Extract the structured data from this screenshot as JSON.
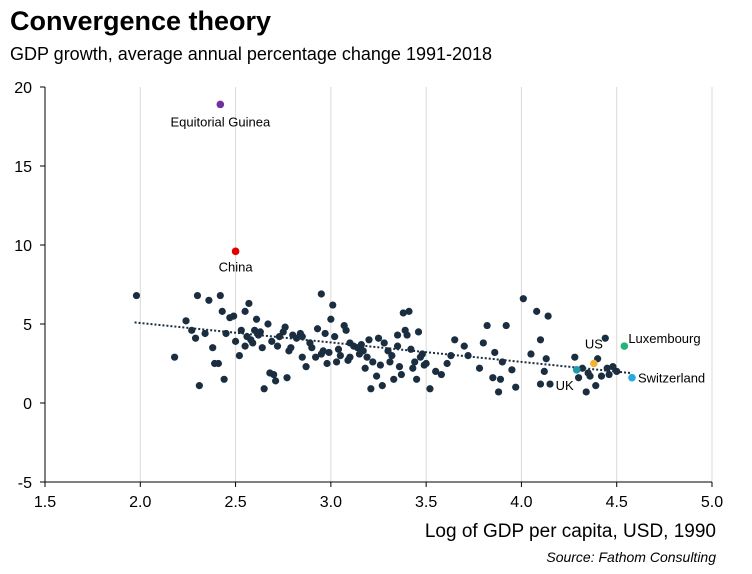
{
  "chart_data": {
    "type": "scatter",
    "title": "Convergence theory",
    "subtitle": "GDP growth, average annual percentage change 1991-2018",
    "xlabel": "Log of GDP per capita, USD, 1990",
    "ylabel": "",
    "source": "Source: Fathom Consulting",
    "xlim": [
      1.5,
      5.0
    ],
    "ylim": [
      -5,
      20
    ],
    "xticks": [
      "1.5",
      "2.0",
      "2.5",
      "3.0",
      "3.5",
      "4.0",
      "4.5",
      "5.0"
    ],
    "yticks": [
      "-5",
      "0",
      "5",
      "10",
      "15",
      "20"
    ],
    "grid": "vertical",
    "trendline": {
      "x": [
        1.97,
        4.57
      ],
      "y": [
        5.1,
        1.9
      ],
      "style": "dotted"
    },
    "colors": {
      "default": "#1a2e40",
      "equatorial_guinea": "#7030a0",
      "china": "#e00000",
      "uk": "#1f9aa8",
      "us": "#f2b233",
      "luxembourg": "#22b573",
      "switzerland": "#2aa8e0"
    },
    "highlighted": [
      {
        "label": "Equitorial Guinea",
        "x": 2.42,
        "y": 18.9,
        "color": "#7030a0"
      },
      {
        "label": "China",
        "x": 2.5,
        "y": 9.6,
        "color": "#e00000"
      },
      {
        "label": "UK",
        "x": 4.29,
        "y": 2.1,
        "color": "#1f9aa8"
      },
      {
        "label": "US",
        "x": 4.38,
        "y": 2.5,
        "color": "#f2b233"
      },
      {
        "label": "Luxembourg",
        "x": 4.54,
        "y": 3.6,
        "color": "#22b573"
      },
      {
        "label": "Switzerland",
        "x": 4.58,
        "y": 1.6,
        "color": "#2aa8e0"
      }
    ],
    "points": [
      [
        1.98,
        6.8
      ],
      [
        2.18,
        2.9
      ],
      [
        2.24,
        5.2
      ],
      [
        2.27,
        4.6
      ],
      [
        2.29,
        4.1
      ],
      [
        2.3,
        6.8
      ],
      [
        2.31,
        1.1
      ],
      [
        2.34,
        4.4
      ],
      [
        2.36,
        6.5
      ],
      [
        2.38,
        3.5
      ],
      [
        2.39,
        2.5
      ],
      [
        2.41,
        2.5
      ],
      [
        2.42,
        6.8
      ],
      [
        2.43,
        5.8
      ],
      [
        2.44,
        1.5
      ],
      [
        2.45,
        4.4
      ],
      [
        2.47,
        5.4
      ],
      [
        2.49,
        5.5
      ],
      [
        2.5,
        3.9
      ],
      [
        2.52,
        3.0
      ],
      [
        2.53,
        4.6
      ],
      [
        2.55,
        3.6
      ],
      [
        2.55,
        5.8
      ],
      [
        2.56,
        4.2
      ],
      [
        2.57,
        6.3
      ],
      [
        2.58,
        4.0
      ],
      [
        2.59,
        3.8
      ],
      [
        2.6,
        4.6
      ],
      [
        2.61,
        5.3
      ],
      [
        2.62,
        4.3
      ],
      [
        2.63,
        4.5
      ],
      [
        2.64,
        3.5
      ],
      [
        2.65,
        0.9
      ],
      [
        2.67,
        5.0
      ],
      [
        2.68,
        1.9
      ],
      [
        2.69,
        3.9
      ],
      [
        2.7,
        1.8
      ],
      [
        2.71,
        1.4
      ],
      [
        2.72,
        3.6
      ],
      [
        2.73,
        4.2
      ],
      [
        2.75,
        4.5
      ],
      [
        2.76,
        4.8
      ],
      [
        2.77,
        1.6
      ],
      [
        2.78,
        3.3
      ],
      [
        2.79,
        3.5
      ],
      [
        2.8,
        4.3
      ],
      [
        2.82,
        4.1
      ],
      [
        2.84,
        4.4
      ],
      [
        2.85,
        4.2
      ],
      [
        2.87,
        2.3
      ],
      [
        2.89,
        3.8
      ],
      [
        2.9,
        3.5
      ],
      [
        2.92,
        2.9
      ],
      [
        2.93,
        4.7
      ],
      [
        2.95,
        6.9
      ],
      [
        2.96,
        3.3
      ],
      [
        2.97,
        4.4
      ],
      [
        2.98,
        2.5
      ],
      [
        2.99,
        3.2
      ],
      [
        3.0,
        5.3
      ],
      [
        3.01,
        6.2
      ],
      [
        3.02,
        4.2
      ],
      [
        3.03,
        2.6
      ],
      [
        3.04,
        3.4
      ],
      [
        3.05,
        3.0
      ],
      [
        3.07,
        4.9
      ],
      [
        3.08,
        4.6
      ],
      [
        3.09,
        2.7
      ],
      [
        3.1,
        3.8
      ],
      [
        3.12,
        3.6
      ],
      [
        3.14,
        3.5
      ],
      [
        3.15,
        3.1
      ],
      [
        3.16,
        3.7
      ],
      [
        3.17,
        3.3
      ],
      [
        3.18,
        2.2
      ],
      [
        3.19,
        2.9
      ],
      [
        3.2,
        4.0
      ],
      [
        3.21,
        0.9
      ],
      [
        3.22,
        2.6
      ],
      [
        3.24,
        1.7
      ],
      [
        3.25,
        4.1
      ],
      [
        3.26,
        2.4
      ],
      [
        3.27,
        1.1
      ],
      [
        3.28,
        3.8
      ],
      [
        3.3,
        3.3
      ],
      [
        3.31,
        2.6
      ],
      [
        3.32,
        3.0
      ],
      [
        3.33,
        1.5
      ],
      [
        3.35,
        4.3
      ],
      [
        3.36,
        2.3
      ],
      [
        3.37,
        1.8
      ],
      [
        3.38,
        5.7
      ],
      [
        3.39,
        4.6
      ],
      [
        3.4,
        4.3
      ],
      [
        3.41,
        5.8
      ],
      [
        3.42,
        3.4
      ],
      [
        3.43,
        2.2
      ],
      [
        3.44,
        2.6
      ],
      [
        3.45,
        1.5
      ],
      [
        3.46,
        4.5
      ],
      [
        3.47,
        2.9
      ],
      [
        3.48,
        3.1
      ],
      [
        3.49,
        2.4
      ],
      [
        3.52,
        0.9
      ],
      [
        3.55,
        2.0
      ],
      [
        3.58,
        1.8
      ],
      [
        3.61,
        2.5
      ],
      [
        3.63,
        3.0
      ],
      [
        3.65,
        4.0
      ],
      [
        3.7,
        3.6
      ],
      [
        3.72,
        3.0
      ],
      [
        3.78,
        2.2
      ],
      [
        3.8,
        3.8
      ],
      [
        3.82,
        4.9
      ],
      [
        3.85,
        1.6
      ],
      [
        3.86,
        3.2
      ],
      [
        3.88,
        0.7
      ],
      [
        3.89,
        1.5
      ],
      [
        3.9,
        2.6
      ],
      [
        3.92,
        4.9
      ],
      [
        3.95,
        2.1
      ],
      [
        3.97,
        1.0
      ],
      [
        4.01,
        6.6
      ],
      [
        4.05,
        3.1
      ],
      [
        4.08,
        5.8
      ],
      [
        4.1,
        1.2
      ],
      [
        4.1,
        4.0
      ],
      [
        4.12,
        2.0
      ],
      [
        4.13,
        2.8
      ],
      [
        4.14,
        5.5
      ],
      [
        4.15,
        1.2
      ],
      [
        4.28,
        2.9
      ],
      [
        4.3,
        1.6
      ],
      [
        4.32,
        2.2
      ],
      [
        4.34,
        0.7
      ],
      [
        4.35,
        1.9
      ],
      [
        4.36,
        1.7
      ],
      [
        4.39,
        1.1
      ],
      [
        4.4,
        2.8
      ],
      [
        4.42,
        1.7
      ],
      [
        4.44,
        4.1
      ],
      [
        4.45,
        2.2
      ],
      [
        4.46,
        1.8
      ],
      [
        4.48,
        2.3
      ],
      [
        4.5,
        2.0
      ],
      [
        3.1,
        2.9
      ],
      [
        2.95,
        3.1
      ],
      [
        3.35,
        3.6
      ],
      [
        2.85,
        2.9
      ],
      [
        3.5,
        2.5
      ]
    ]
  }
}
